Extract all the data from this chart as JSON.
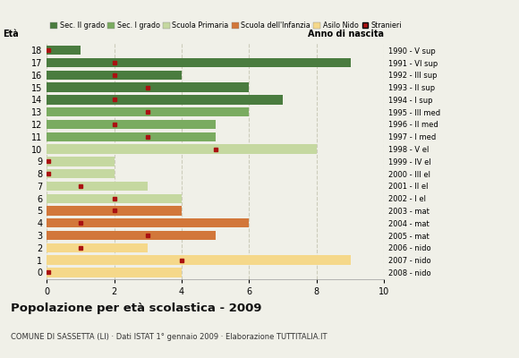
{
  "title": "Popolazione per età scolastica - 2009",
  "subtitle": "COMUNE DI SASSETTA (LI) · Dati ISTAT 1° gennaio 2009 · Elaborazione TUTTITALIA.IT",
  "ages": [
    18,
    17,
    16,
    15,
    14,
    13,
    12,
    11,
    10,
    9,
    8,
    7,
    6,
    5,
    4,
    3,
    2,
    1,
    0
  ],
  "years": [
    "1990 - V sup",
    "1991 - VI sup",
    "1992 - III sup",
    "1993 - II sup",
    "1994 - I sup",
    "1995 - III med",
    "1996 - II med",
    "1997 - I med",
    "1998 - V el",
    "1999 - IV el",
    "2000 - III el",
    "2001 - II el",
    "2002 - I el",
    "2003 - mat",
    "2004 - mat",
    "2005 - mat",
    "2006 - nido",
    "2007 - nido",
    "2008 - nido"
  ],
  "bar_values": [
    1,
    9,
    4,
    6,
    7,
    6,
    5,
    5,
    8,
    2,
    2,
    3,
    4,
    4,
    6,
    5,
    3,
    9,
    4
  ],
  "stranieri": [
    0.05,
    2,
    2,
    3,
    2,
    3,
    2,
    3,
    5,
    0.05,
    0.05,
    1,
    2,
    2,
    1,
    3,
    1,
    4,
    0.05
  ],
  "stranieri_show": [
    false,
    true,
    true,
    true,
    true,
    true,
    true,
    true,
    true,
    false,
    false,
    true,
    true,
    true,
    true,
    true,
    true,
    true,
    false
  ],
  "bar_colors": [
    "#4a7c3f",
    "#4a7c3f",
    "#4a7c3f",
    "#4a7c3f",
    "#4a7c3f",
    "#7aab60",
    "#7aab60",
    "#7aab60",
    "#c5d8a0",
    "#c5d8a0",
    "#c5d8a0",
    "#c5d8a0",
    "#c5d8a0",
    "#d2773a",
    "#d2773a",
    "#d2773a",
    "#f5d88a",
    "#f5d88a",
    "#f5d88a"
  ],
  "legend_labels": [
    "Sec. II grado",
    "Sec. I grado",
    "Scuola Primaria",
    "Scuola dell'Infanzia",
    "Asilo Nido",
    "Stranieri"
  ],
  "legend_colors": [
    "#4a7c3f",
    "#7aab60",
    "#c5d8a0",
    "#d2773a",
    "#f5d88a",
    "#cc2222"
  ],
  "stranieri_color": "#aa1111",
  "xlim": [
    0,
    10
  ],
  "xticks": [
    0,
    2,
    4,
    6,
    8,
    10
  ],
  "background_color": "#f0f0e8",
  "bar_height": 0.75,
  "grid_color": "#ccccbb"
}
